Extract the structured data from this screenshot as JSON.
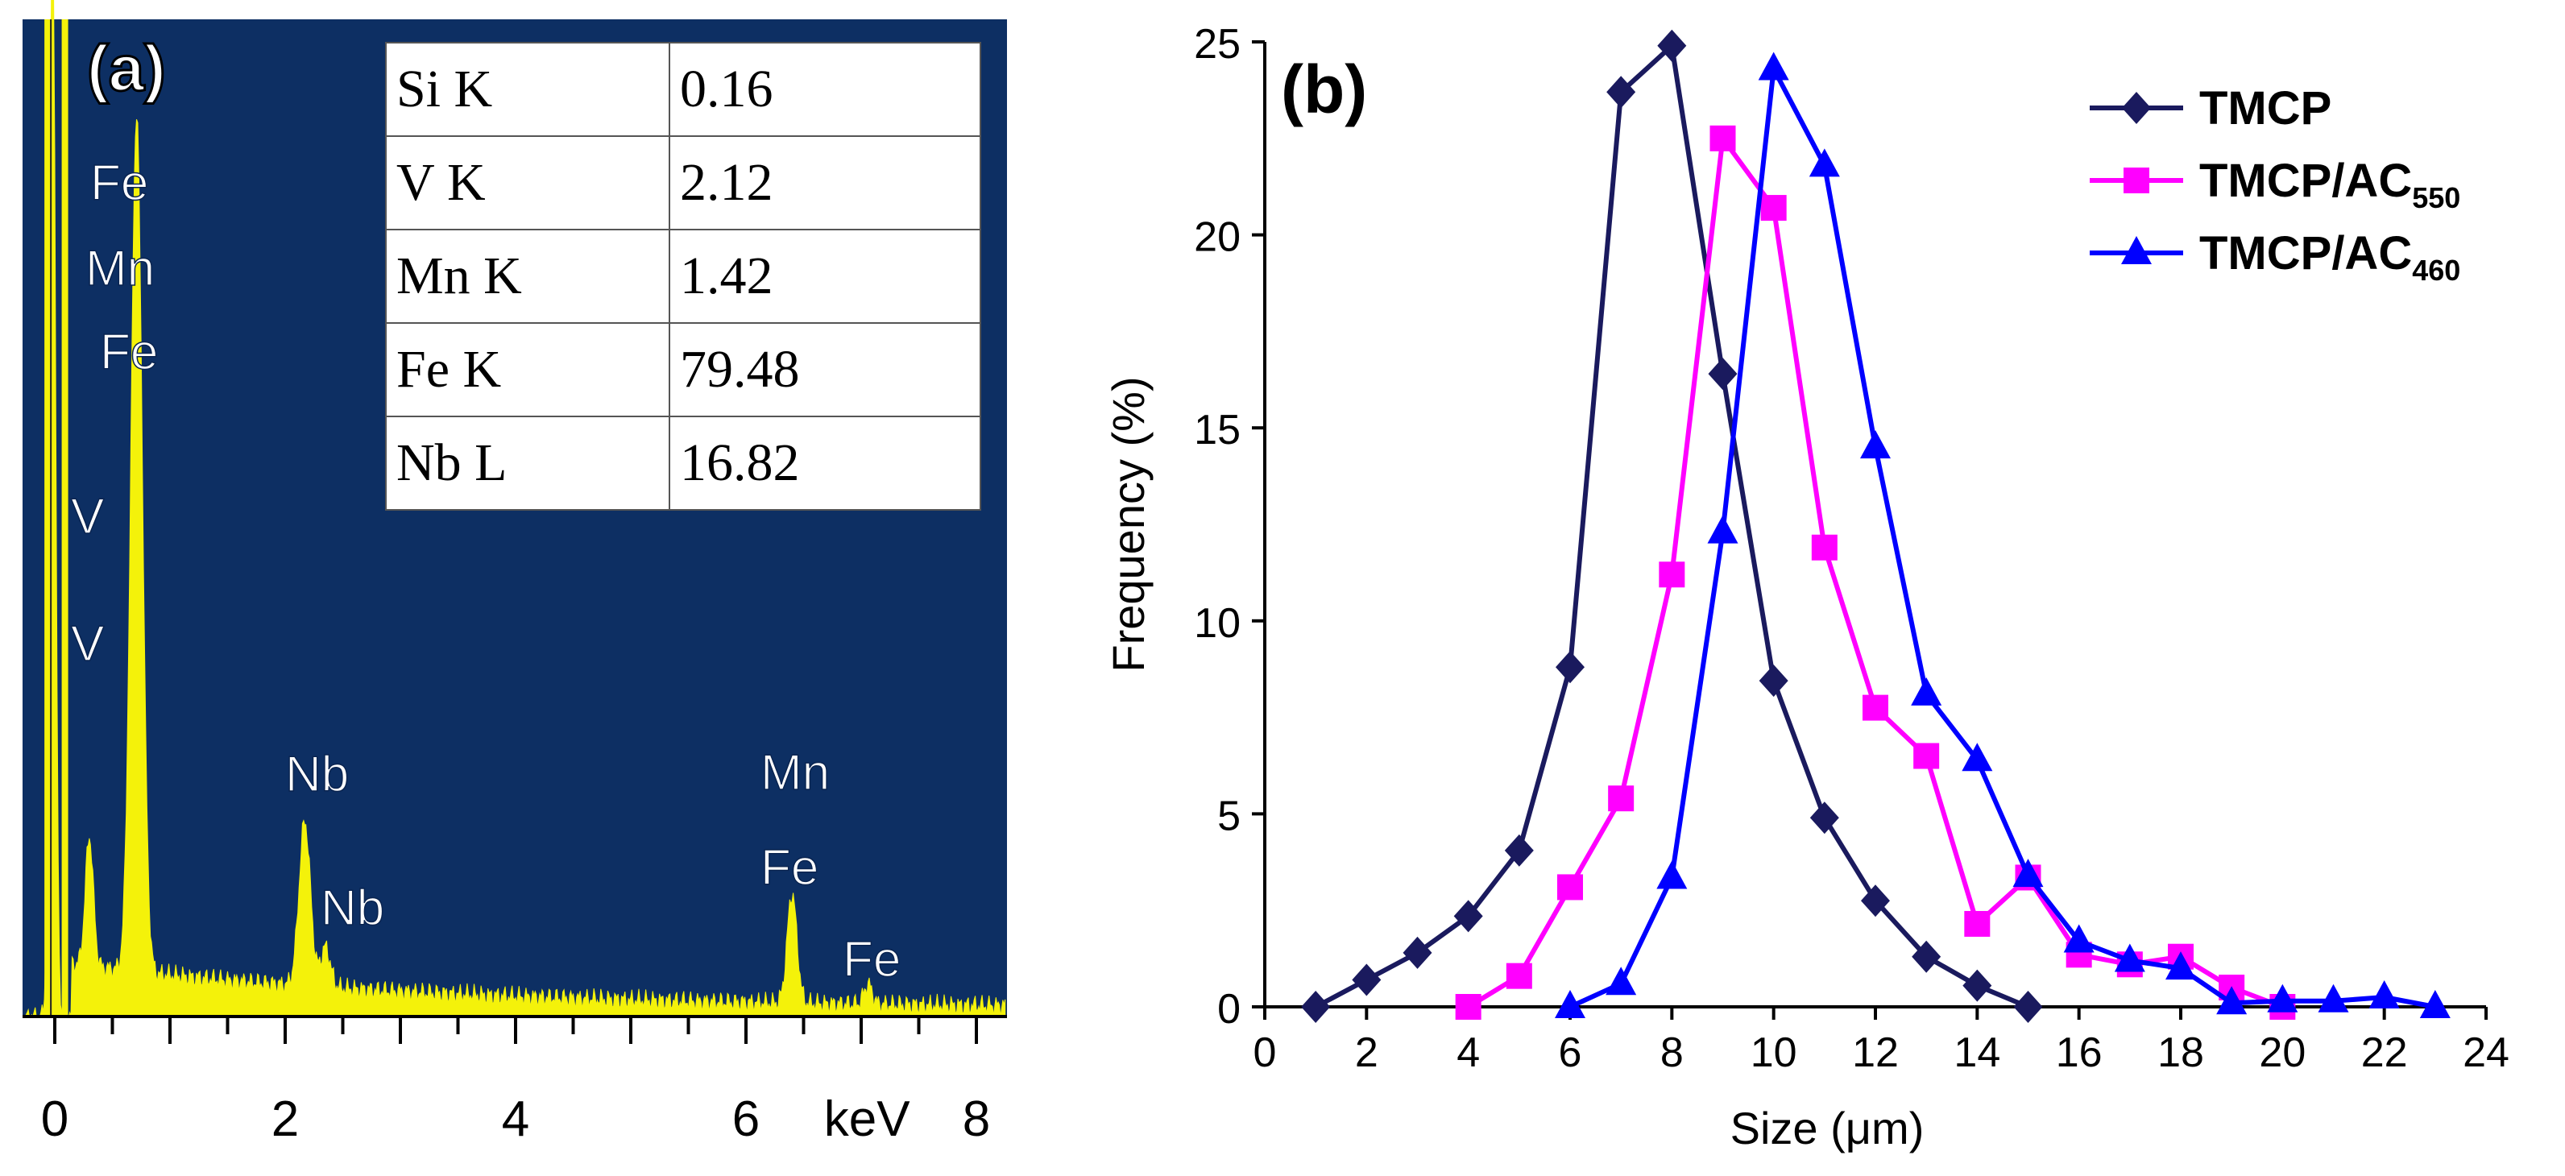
{
  "panel_a": {
    "label": "(a)",
    "x_unit": "keV",
    "x_ticks": [
      "0",
      "2",
      "4",
      "6",
      "8"
    ],
    "peak_labels": [
      {
        "id": "fe1",
        "text": "Fe"
      },
      {
        "id": "mn1",
        "text": "Mn"
      },
      {
        "id": "fe2",
        "text": "Fe"
      },
      {
        "id": "v1",
        "text": "V"
      },
      {
        "id": "v2",
        "text": "V"
      },
      {
        "id": "nb1",
        "text": "Nb"
      },
      {
        "id": "nb2",
        "text": "Nb"
      },
      {
        "id": "mn2",
        "text": "Mn"
      },
      {
        "id": "fe3",
        "text": "Fe"
      },
      {
        "id": "fe4",
        "text": "Fe"
      }
    ],
    "table": [
      {
        "element": "Si K",
        "value": "0.16"
      },
      {
        "element": "V K",
        "value": "2.12"
      },
      {
        "element": "Mn K",
        "value": "1.42"
      },
      {
        "element": "Fe K",
        "value": "79.48"
      },
      {
        "element": "Nb L",
        "value": "16.82"
      }
    ],
    "colors": {
      "background": "#0d2f63",
      "spectrum": "#f4f20a"
    }
  },
  "chart_data": [
    {
      "type": "area",
      "panel": "(a)",
      "xlabel": "keV",
      "xlim": [
        -0.3,
        8.3
      ],
      "x_ticks": [
        0,
        2,
        4,
        6,
        8
      ],
      "peaks_keV": {
        "Fe_L": 0.71,
        "V_L": 0.51,
        "Nb_L": 2.17,
        "Mn_K": 5.9,
        "Fe_K": 6.4,
        "Fe_Kb": 7.06
      },
      "table": [
        {
          "element": "Si K",
          "value": 0.16
        },
        {
          "element": "V K",
          "value": 2.12
        },
        {
          "element": "Mn K",
          "value": 1.42
        },
        {
          "element": "Fe K",
          "value": 79.48
        },
        {
          "element": "Nb L",
          "value": 16.82
        }
      ]
    },
    {
      "type": "line",
      "panel": "(b)",
      "title": "",
      "xlabel": "Size (μm)",
      "ylabel": "Frequency (%)",
      "xlim": [
        0,
        24
      ],
      "ylim": [
        0,
        25
      ],
      "x_ticks": [
        0,
        2,
        4,
        6,
        8,
        10,
        12,
        14,
        16,
        18,
        20,
        22,
        24
      ],
      "y_ticks": [
        0,
        5,
        10,
        15,
        20,
        25
      ],
      "grid": false,
      "legend_position": "top-right",
      "series": [
        {
          "name": "TMCP",
          "sub": "",
          "color": "#1a1a5e",
          "marker": "diamond",
          "x": [
            1,
            2,
            3,
            4,
            5,
            6,
            7,
            8,
            9,
            10,
            11,
            12,
            13,
            14,
            15
          ],
          "y": [
            0,
            0.7,
            1.4,
            2.35,
            4.05,
            8.8,
            23.7,
            24.9,
            16.4,
            8.45,
            4.9,
            2.75,
            1.3,
            0.55,
            0
          ]
        },
        {
          "name": "TMCP/AC",
          "sub": "550",
          "color": "#ff00ff",
          "marker": "square",
          "x": [
            4,
            5,
            6,
            7,
            8,
            9,
            10,
            11,
            12,
            13,
            14,
            15,
            16,
            17,
            18,
            19,
            20
          ],
          "y": [
            0,
            0.8,
            3.1,
            5.4,
            11.2,
            22.5,
            20.7,
            11.9,
            7.75,
            6.5,
            2.15,
            3.35,
            1.35,
            1.1,
            1.3,
            0.5,
            0
          ]
        },
        {
          "name": "TMCP/AC",
          "sub": "460",
          "color": "#0000ff",
          "marker": "triangle",
          "x": [
            6,
            7,
            8,
            9,
            10,
            11,
            12,
            13,
            14,
            15,
            16,
            17,
            18,
            19,
            20,
            21,
            22,
            23
          ],
          "y": [
            0,
            0.6,
            3.35,
            12.3,
            24.3,
            21.8,
            14.5,
            8.1,
            6.4,
            3.4,
            1.7,
            1.2,
            1.0,
            0.1,
            0.15,
            0.15,
            0.25,
            0
          ]
        }
      ]
    }
  ]
}
